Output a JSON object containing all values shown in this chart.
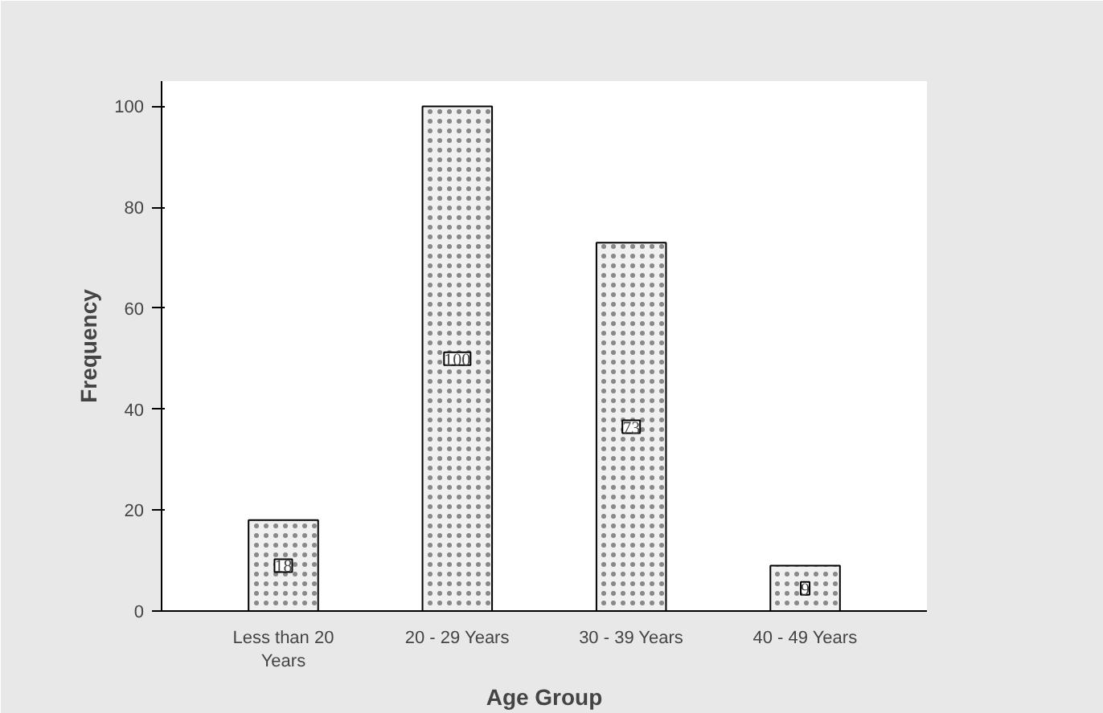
{
  "chart_data": {
    "type": "bar",
    "xlabel": "Age Group",
    "ylabel": "Frequency",
    "categories": [
      "Less than 20 Years",
      "20 - 29 Years",
      "30 - 39 Years",
      "40 - 49 Years"
    ],
    "values": [
      18,
      100,
      73,
      9
    ],
    "color": "#f0f0f0",
    "ylim": [
      0,
      105
    ],
    "yticks": [
      0,
      20,
      40,
      60,
      80,
      100
    ],
    "grid": false,
    "data_labels": true
  }
}
